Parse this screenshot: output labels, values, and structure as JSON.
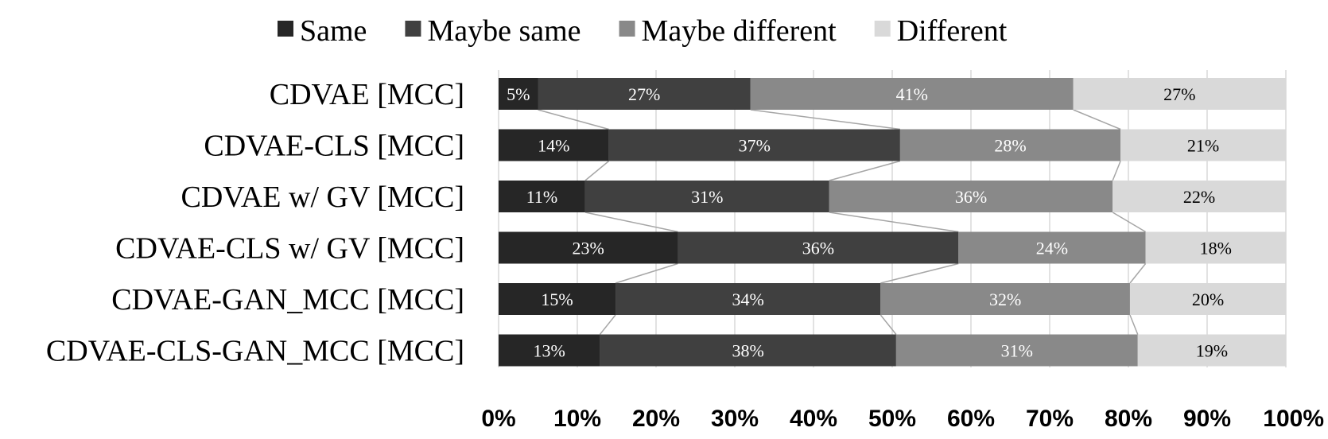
{
  "chart_data": {
    "type": "bar",
    "orientation": "horizontal",
    "stacked": true,
    "normalized_100": true,
    "categories": [
      "CDVAE [MCC]",
      "CDVAE-CLS [MCC]",
      "CDVAE w/ GV [MCC]",
      "CDVAE-CLS w/ GV [MCC]",
      "CDVAE-GAN_MCC [MCC]",
      "CDVAE-CLS-GAN_MCC [MCC]"
    ],
    "series": [
      {
        "name": "Same",
        "color": "#262626",
        "label_color": "#ffffff",
        "values": [
          5,
          14,
          11,
          23,
          15,
          13
        ],
        "labels": [
          "5%",
          "14%",
          "11%",
          "23%",
          "15%",
          "13%"
        ]
      },
      {
        "name": "Maybe same",
        "color": "#404040",
        "label_color": "#ffffff",
        "values": [
          27,
          37,
          31,
          36,
          34,
          38
        ],
        "labels": [
          "27%",
          "37%",
          "31%",
          "36%",
          "34%",
          "38%"
        ]
      },
      {
        "name": "Maybe different",
        "color": "#898989",
        "label_color": "#ffffff",
        "values": [
          41,
          28,
          36,
          24,
          32,
          31
        ],
        "labels": [
          "41%",
          "28%",
          "36%",
          "24%",
          "32%",
          "31%"
        ]
      },
      {
        "name": "Different",
        "color": "#d9d9d9",
        "label_color": "#000000",
        "values": [
          27,
          21,
          22,
          18,
          20,
          19
        ],
        "labels": [
          "27%",
          "21%",
          "22%",
          "18%",
          "20%",
          "19%"
        ]
      }
    ],
    "xlim": [
      0,
      100
    ],
    "xticks": [
      "0%",
      "10%",
      "20%",
      "30%",
      "40%",
      "50%",
      "60%",
      "70%",
      "80%",
      "90%",
      "100%"
    ],
    "xlabel": "",
    "ylabel": "",
    "grid": true,
    "series_lines": true,
    "legend_position": "top"
  }
}
